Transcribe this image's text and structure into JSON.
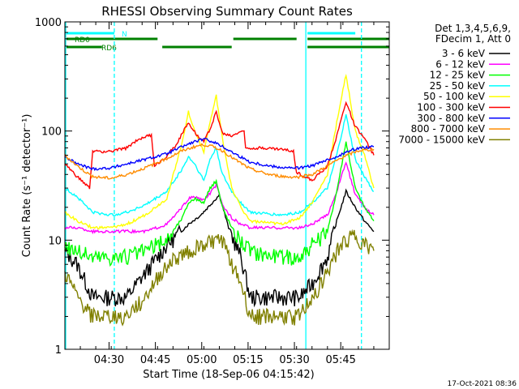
{
  "chart_data": {
    "type": "line",
    "title": "RHESSI Observing Summary Count Rates",
    "xlabel": "Start Time (18-Sep-06 04:15:42)",
    "ylabel": "Count Rate (s⁻¹ detector⁻¹)",
    "yscale": "log",
    "ylim": [
      1,
      1000
    ],
    "y_ticks": [
      "1",
      "10",
      "100",
      "1000"
    ],
    "xlim_min": [
      0,
      105
    ],
    "x_ticks": [
      {
        "label": "04:30",
        "t": 14.3
      },
      {
        "label": "04:45",
        "t": 29.3
      },
      {
        "label": "05:00",
        "t": 44.3
      },
      {
        "label": "05:15",
        "t": 59.3
      },
      {
        "label": "05:30",
        "t": 74.3
      },
      {
        "label": "05:45",
        "t": 89.3
      }
    ],
    "legend_header": [
      "Det 1,3,4,5,6,9,",
      "FDecim 1, Att 0"
    ],
    "series": [
      {
        "name": "3 - 6 keV",
        "color": "#000000",
        "values": [
          [
            0,
            8
          ],
          [
            4,
            6
          ],
          [
            9,
            3
          ],
          [
            15,
            3
          ],
          [
            20,
            3
          ],
          [
            26,
            5
          ],
          [
            33,
            9
          ],
          [
            40,
            14
          ],
          [
            44,
            17
          ],
          [
            47,
            21
          ],
          [
            50,
            26
          ],
          [
            53,
            13
          ],
          [
            57,
            7
          ],
          [
            60,
            3
          ],
          [
            70,
            3
          ],
          [
            76,
            3
          ],
          [
            80,
            4
          ],
          [
            85,
            7
          ],
          [
            88,
            15
          ],
          [
            91,
            28
          ],
          [
            94,
            20
          ],
          [
            97,
            15
          ],
          [
            100,
            12
          ]
        ]
      },
      {
        "name": "6 - 12 keV",
        "color": "#ff00ff",
        "values": [
          [
            0,
            13
          ],
          [
            4,
            13
          ],
          [
            9,
            12
          ],
          [
            15,
            12
          ],
          [
            20,
            12
          ],
          [
            26,
            12
          ],
          [
            33,
            14
          ],
          [
            38,
            20
          ],
          [
            40,
            24
          ],
          [
            42,
            25
          ],
          [
            45,
            23
          ],
          [
            47,
            27
          ],
          [
            49,
            32
          ],
          [
            51,
            21
          ],
          [
            54,
            16
          ],
          [
            57,
            14
          ],
          [
            60,
            13
          ],
          [
            70,
            13
          ],
          [
            76,
            13
          ],
          [
            80,
            14
          ],
          [
            85,
            17
          ],
          [
            88,
            28
          ],
          [
            91,
            52
          ],
          [
            94,
            26
          ],
          [
            97,
            20
          ],
          [
            100,
            17
          ]
        ]
      },
      {
        "name": "12 - 25 keV",
        "color": "#00ff00",
        "values": [
          [
            0,
            9
          ],
          [
            4,
            8
          ],
          [
            9,
            7
          ],
          [
            15,
            7
          ],
          [
            20,
            7
          ],
          [
            26,
            8
          ],
          [
            33,
            10
          ],
          [
            38,
            16
          ],
          [
            40,
            22
          ],
          [
            42,
            24
          ],
          [
            45,
            22
          ],
          [
            47,
            30
          ],
          [
            49,
            35
          ],
          [
            51,
            20
          ],
          [
            54,
            13
          ],
          [
            57,
            10
          ],
          [
            60,
            8
          ],
          [
            70,
            7
          ],
          [
            76,
            7
          ],
          [
            80,
            9
          ],
          [
            85,
            12
          ],
          [
            88,
            28
          ],
          [
            91,
            80
          ],
          [
            94,
            30
          ],
          [
            97,
            20
          ],
          [
            100,
            15
          ]
        ]
      },
      {
        "name": "25 - 50 keV",
        "color": "#00ffff",
        "values": [
          [
            0,
            30
          ],
          [
            4,
            25
          ],
          [
            9,
            18
          ],
          [
            15,
            17
          ],
          [
            20,
            18
          ],
          [
            26,
            21
          ],
          [
            33,
            28
          ],
          [
            38,
            45
          ],
          [
            40,
            58
          ],
          [
            42,
            50
          ],
          [
            45,
            35
          ],
          [
            47,
            55
          ],
          [
            49,
            70
          ],
          [
            51,
            40
          ],
          [
            54,
            28
          ],
          [
            57,
            22
          ],
          [
            60,
            18
          ],
          [
            70,
            17
          ],
          [
            76,
            18
          ],
          [
            80,
            22
          ],
          [
            85,
            30
          ],
          [
            88,
            60
          ],
          [
            91,
            140
          ],
          [
            94,
            55
          ],
          [
            97,
            38
          ],
          [
            100,
            28
          ]
        ]
      },
      {
        "name": "50 - 100 keV",
        "color": "#ffff00",
        "values": [
          [
            0,
            18
          ],
          [
            4,
            15
          ],
          [
            9,
            13
          ],
          [
            15,
            13
          ],
          [
            20,
            14
          ],
          [
            26,
            17
          ],
          [
            33,
            24
          ],
          [
            38,
            80
          ],
          [
            40,
            150
          ],
          [
            42,
            100
          ],
          [
            45,
            65
          ],
          [
            47,
            120
          ],
          [
            49,
            210
          ],
          [
            51,
            85
          ],
          [
            54,
            30
          ],
          [
            57,
            20
          ],
          [
            60,
            15
          ],
          [
            70,
            14
          ],
          [
            76,
            16
          ],
          [
            80,
            22
          ],
          [
            85,
            40
          ],
          [
            88,
            120
          ],
          [
            91,
            330
          ],
          [
            94,
            100
          ],
          [
            97,
            60
          ],
          [
            100,
            30
          ]
        ]
      },
      {
        "name": "100 - 300 keV",
        "color": "#ff0000",
        "values": [
          [
            0,
            50
          ],
          [
            4,
            38
          ],
          [
            8,
            30
          ],
          [
            9,
            65
          ],
          [
            15,
            65
          ],
          [
            20,
            70
          ],
          [
            24,
            85
          ],
          [
            28,
            92
          ],
          [
            29,
            48
          ],
          [
            32,
            55
          ],
          [
            36,
            75
          ],
          [
            40,
            120
          ],
          [
            43,
            90
          ],
          [
            45,
            80
          ],
          [
            47,
            105
          ],
          [
            49,
            150
          ],
          [
            51,
            95
          ],
          [
            54,
            90
          ],
          [
            57,
            100
          ],
          [
            58,
            98
          ],
          [
            58.5,
            70
          ],
          [
            64,
            70
          ],
          [
            70,
            68
          ],
          [
            74,
            65
          ],
          [
            75,
            42
          ],
          [
            80,
            35
          ],
          [
            85,
            48
          ],
          [
            88,
            90
          ],
          [
            91,
            185
          ],
          [
            94,
            110
          ],
          [
            97,
            85
          ],
          [
            100,
            60
          ]
        ]
      },
      {
        "name": "300 - 800 keV",
        "color": "#0000ff",
        "values": [
          [
            0,
            58
          ],
          [
            4,
            50
          ],
          [
            9,
            45
          ],
          [
            15,
            46
          ],
          [
            20,
            50
          ],
          [
            26,
            55
          ],
          [
            33,
            62
          ],
          [
            38,
            72
          ],
          [
            42,
            80
          ],
          [
            45,
            84
          ],
          [
            48,
            80
          ],
          [
            51,
            72
          ],
          [
            55,
            62
          ],
          [
            60,
            52
          ],
          [
            66,
            48
          ],
          [
            72,
            46
          ],
          [
            76,
            46
          ],
          [
            80,
            48
          ],
          [
            85,
            54
          ],
          [
            90,
            62
          ],
          [
            95,
            70
          ],
          [
            100,
            72
          ]
        ]
      },
      {
        "name": "800 - 7000 keV",
        "color": "#ff8c00",
        "values": [
          [
            0,
            60
          ],
          [
            4,
            48
          ],
          [
            9,
            38
          ],
          [
            15,
            37
          ],
          [
            20,
            40
          ],
          [
            26,
            46
          ],
          [
            33,
            56
          ],
          [
            38,
            66
          ],
          [
            42,
            72
          ],
          [
            45,
            75
          ],
          [
            48,
            72
          ],
          [
            51,
            66
          ],
          [
            55,
            55
          ],
          [
            60,
            45
          ],
          [
            66,
            40
          ],
          [
            72,
            38
          ],
          [
            76,
            38
          ],
          [
            80,
            40
          ],
          [
            85,
            48
          ],
          [
            90,
            58
          ],
          [
            95,
            66
          ],
          [
            100,
            68
          ]
        ]
      },
      {
        "name": "7000 - 15000 keV",
        "color": "#808000",
        "values": [
          [
            0,
            5
          ],
          [
            4,
            3
          ],
          [
            9,
            2
          ],
          [
            15,
            2
          ],
          [
            20,
            2
          ],
          [
            26,
            3
          ],
          [
            33,
            6
          ],
          [
            40,
            8
          ],
          [
            44,
            9
          ],
          [
            48,
            10
          ],
          [
            51,
            10
          ],
          [
            53,
            7
          ],
          [
            57,
            4
          ],
          [
            60,
            2
          ],
          [
            70,
            2
          ],
          [
            76,
            2
          ],
          [
            80,
            3
          ],
          [
            85,
            5
          ],
          [
            88,
            8
          ],
          [
            91,
            10
          ],
          [
            94,
            11
          ],
          [
            97,
            9
          ],
          [
            100,
            8
          ]
        ]
      }
    ],
    "state_bars": [
      {
        "label": "RD0",
        "color": "#008000",
        "segments": [
          [
            0,
            30
          ],
          [
            54,
            75
          ],
          [
            78,
            105
          ]
        ]
      },
      {
        "label": "RD6",
        "color": "#008000",
        "segments": [
          [
            0,
            12
          ],
          [
            31,
            54
          ],
          [
            78,
            105
          ]
        ]
      },
      {
        "label": "N",
        "color": "#00ffff",
        "segments": [
          [
            0,
            16
          ],
          [
            78,
            94
          ]
        ]
      }
    ],
    "vlines": [
      {
        "t": 0,
        "color": "#00ffff",
        "style": "solid"
      },
      {
        "t": 16,
        "color": "#00ffff",
        "style": "dashed"
      },
      {
        "t": 78,
        "color": "#00ffff",
        "style": "solid"
      },
      {
        "t": 96,
        "color": "#00ffff",
        "style": "dashed"
      }
    ],
    "grid": false,
    "legend_position": "right"
  },
  "footer": {
    "date_stamp": "17-Oct-2021 08:36"
  }
}
